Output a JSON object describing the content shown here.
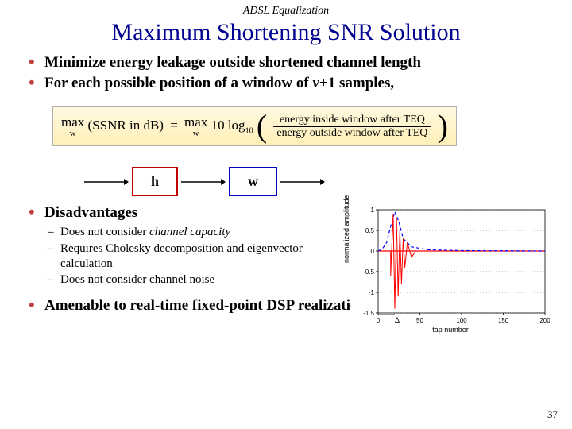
{
  "header": "ADSL Equalization",
  "title": "Maximum Shortening SNR Solution",
  "bullets": {
    "b1": "Minimize energy leakage outside shortened channel length",
    "b2_pre": "For each possible position of a window of ",
    "b2_nu": "ν",
    "b2_post": "+1 samples,",
    "b3": "Disadvantages",
    "b4": "Amenable to real-time fixed-point DSP realization"
  },
  "sub": {
    "s1_pre": "Does not consider ",
    "s1_em": "channel capacity",
    "s2": "Requires Cholesky decomposition and eigenvector calculation",
    "s3": "Does not consider channel noise"
  },
  "formula": {
    "lhs_max": "max",
    "lhs_sub": "w",
    "lhs_inside": "(SSNR in dB)",
    "eq": "=",
    "rhs_max": "max",
    "rhs_sub": "w",
    "tenlog": "10 log",
    "tenlog_sub": "10",
    "num": "energy inside window after TEQ",
    "den": "energy outside window after TEQ"
  },
  "blocks": {
    "h": "h",
    "w": "w",
    "h_border": "#c00000",
    "w_border": "#0000c0",
    "arrow_color": "#000000"
  },
  "chart": {
    "ylabel": "normalized amplitude",
    "xlabel": "tap number",
    "xlim": [
      0,
      200
    ],
    "ylim": [
      -1.5,
      1.0
    ],
    "xticks": [
      0,
      50,
      100,
      150,
      200
    ],
    "yticks": [
      -1.5,
      -1.0,
      -0.5,
      0,
      0.5,
      1.0
    ],
    "grid_color": "#000000",
    "zero_line_color": "#ff0000",
    "blue_curve_color": "#0000ff",
    "red_curve_color": "#ff0000",
    "delta_label": "Δ",
    "blue_curve": [
      [
        0,
        0
      ],
      [
        5,
        0.05
      ],
      [
        10,
        0.2
      ],
      [
        15,
        0.6
      ],
      [
        20,
        0.95
      ],
      [
        25,
        0.7
      ],
      [
        30,
        0.3
      ],
      [
        40,
        0.1
      ],
      [
        60,
        0.03
      ],
      [
        100,
        0.01
      ],
      [
        200,
        0
      ]
    ],
    "red_spikes": [
      [
        15,
        -0.6
      ],
      [
        18,
        0.9
      ],
      [
        20,
        -1.4
      ],
      [
        22,
        0.8
      ],
      [
        24,
        -1.1
      ],
      [
        26,
        0.5
      ],
      [
        28,
        -0.8
      ],
      [
        30,
        0.3
      ],
      [
        32,
        -0.4
      ],
      [
        35,
        0.2
      ],
      [
        40,
        -0.15
      ]
    ]
  },
  "page": "37",
  "colors": {
    "title": "#000090",
    "bullet_marker": "#c04040",
    "formula_bg_top": "#fff8e0",
    "formula_bg_bottom": "#fff0b8"
  }
}
